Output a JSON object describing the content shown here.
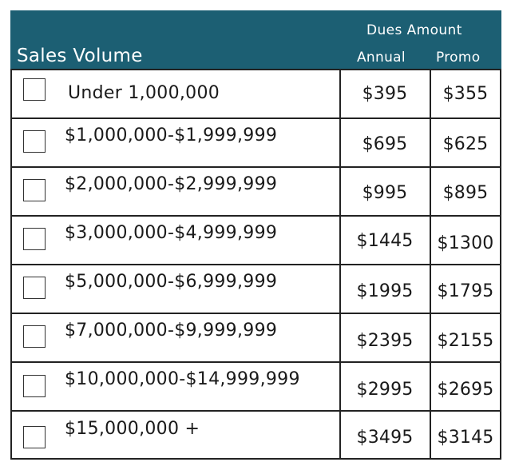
{
  "header": {
    "sales_volume": "Sales Volume",
    "dues_amount": "Dues Amount",
    "annual": "Annual",
    "promo": "Promo",
    "bg_color": "#1c5f73"
  },
  "rows": [
    {
      "label": "Under 1,000,000",
      "annual": "$395",
      "promo": "$355",
      "checked": false
    },
    {
      "label": "$1,000,000-$1,999,999",
      "annual": "$695",
      "promo": "$625",
      "checked": false
    },
    {
      "label": "$2,000,000-$2,999,999",
      "annual": "$995",
      "promo": "$895",
      "checked": false
    },
    {
      "label": "$3,000,000-$4,999,999",
      "annual": "$1445",
      "promo": "$1300",
      "checked": false
    },
    {
      "label": "$5,000,000-$6,999,999",
      "annual": "$1995",
      "promo": "$1795",
      "checked": false
    },
    {
      "label": "$7,000,000-$9,999,999",
      "annual": "$2395",
      "promo": "$2155",
      "checked": false
    },
    {
      "label": "$10,000,000-$14,999,999",
      "annual": "$2995",
      "promo": "$2695",
      "checked": false
    },
    {
      "label": "$15,000,000 +",
      "annual": "$3495",
      "promo": "$3145",
      "checked": false
    }
  ]
}
